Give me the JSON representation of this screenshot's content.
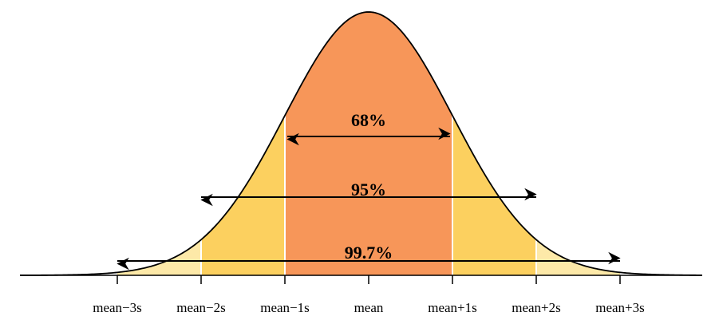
{
  "ticks": [
    "mean−3s",
    "mean−2s",
    "mean−1s",
    "mean",
    "mean+1s",
    "mean+2s",
    "mean+3s"
  ],
  "ranges": [
    {
      "label": "68%"
    },
    {
      "label": "95%"
    },
    {
      "label": "99.7%"
    }
  ]
}
